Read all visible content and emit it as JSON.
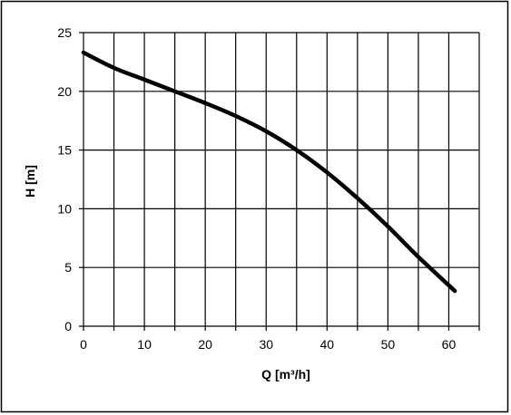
{
  "chart_data": {
    "type": "line",
    "title": "",
    "xlabel": "Q [m³/h]",
    "ylabel": "H [m]",
    "xlim": [
      0,
      65
    ],
    "ylim": [
      0,
      25
    ],
    "x_ticks": [
      0,
      10,
      20,
      30,
      40,
      50,
      60
    ],
    "y_ticks": [
      0,
      5,
      10,
      15,
      20,
      25
    ],
    "x_gridlines": [
      0,
      5,
      10,
      15,
      20,
      25,
      30,
      35,
      40,
      45,
      50,
      55,
      60,
      65
    ],
    "y_gridlines": [
      0,
      5,
      10,
      15,
      20,
      25
    ],
    "grid": true,
    "legend": "none",
    "colors": {
      "line": "#000000",
      "grid": "#000000",
      "background": "#ffffff"
    },
    "series": [
      {
        "x": [
          0,
          5,
          10,
          15,
          20,
          25,
          30,
          35,
          40,
          45,
          50,
          55,
          61
        ],
        "y": [
          23.3,
          22.0,
          21.0,
          20.0,
          19.0,
          17.9,
          16.6,
          15.0,
          13.1,
          10.9,
          8.5,
          5.9,
          3.0
        ]
      }
    ]
  }
}
